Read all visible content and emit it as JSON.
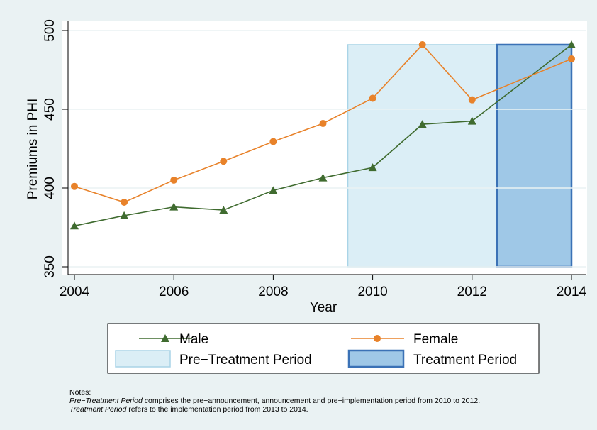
{
  "chart_data": {
    "type": "line",
    "x_label": "Year",
    "y_label": "Premiums in PHI",
    "x": [
      2004,
      2005,
      2006,
      2007,
      2008,
      2009,
      2010,
      2011,
      2012,
      2014
    ],
    "series": [
      {
        "name": "Male",
        "color": "#3f6b2f",
        "marker": "triangle",
        "values": [
          376,
          382.5,
          388,
          386,
          398.5,
          406.5,
          413,
          440.5,
          442.5,
          491
        ]
      },
      {
        "name": "Female",
        "color": "#e8822a",
        "marker": "circle",
        "values": [
          401,
          391,
          405,
          417,
          429.5,
          441,
          457,
          491,
          456,
          482
        ]
      }
    ],
    "regions": [
      {
        "name": "Pre−Treatment Period",
        "color": "#dbeef6",
        "edge": "#a9d4e7",
        "x": [
          2009.5,
          2012.5
        ],
        "y": [
          350,
          491
        ]
      },
      {
        "name": "Treatment Period",
        "color": "#9fc8e7",
        "edge": "#3b72b6",
        "x": [
          2012.5,
          2014
        ],
        "y": [
          350,
          491
        ]
      }
    ],
    "xlim": [
      2004,
      2014
    ],
    "xticks": [
      2004,
      2006,
      2008,
      2010,
      2012,
      2014
    ],
    "ylim": [
      350,
      500
    ],
    "yticks": [
      350,
      400,
      450,
      500
    ],
    "grid": true,
    "notes": {
      "heading": "Notes:",
      "line1": {
        "italic": "Pre−Treatment Period",
        "text": " comprises the pre−announcement, announcement and pre−implementation period from 2010 to 2012."
      },
      "line2": {
        "italic": "Treatment Period",
        "text": " refers to the implementation period from 2013 to 2014."
      }
    }
  }
}
